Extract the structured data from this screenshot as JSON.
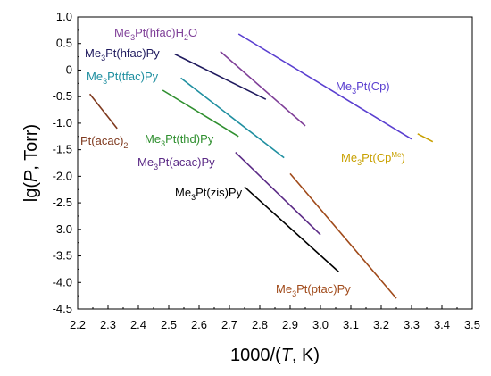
{
  "chart_data": {
    "type": "line",
    "title": "",
    "xlabel": {
      "pre": "1000/(",
      "var": "T",
      "post": ", K)"
    },
    "ylabel": {
      "pre": "lg(",
      "var": "P",
      "post": ", Torr)"
    },
    "xlim": [
      2.2,
      3.5
    ],
    "ylim": [
      -4.5,
      1.0
    ],
    "x_ticks": [
      "2.2",
      "2.3",
      "2.4",
      "2.5",
      "2.6",
      "2.7",
      "2.8",
      "2.9",
      "3.0",
      "3.1",
      "3.2",
      "3.3",
      "3.4",
      "3.5"
    ],
    "y_ticks": [
      "1.0",
      "0.5",
      "0",
      "-0.5",
      "-1.0",
      "-1.5",
      "-2.0",
      "-2.5",
      "-3.0",
      "-3.5",
      "-4.0",
      "-4.5"
    ],
    "grid": false,
    "series": [
      {
        "color": "#7f3f98",
        "label": {
          "parts": [
            {
              "t": "Me"
            },
            {
              "t": "3",
              "s": "sub"
            },
            {
              "t": "Pt(hfac)H"
            },
            {
              "t": "2",
              "s": "sub"
            },
            {
              "t": "O"
            }
          ]
        },
        "x": [
          2.67,
          2.95
        ],
        "y": [
          0.35,
          -1.05
        ]
      },
      {
        "color": "#1f1a5e",
        "label": {
          "parts": [
            {
              "t": "Me"
            },
            {
              "t": "3",
              "s": "sub"
            },
            {
              "t": "Pt(hfac)Py"
            }
          ]
        },
        "x": [
          2.52,
          2.82
        ],
        "y": [
          0.3,
          -0.55
        ]
      },
      {
        "color": "#1f8fa0",
        "label": {
          "parts": [
            {
              "t": "Me"
            },
            {
              "t": "3",
              "s": "sub"
            },
            {
              "t": "Pt(tfac)Py"
            }
          ]
        },
        "x": [
          2.54,
          2.88
        ],
        "y": [
          -0.15,
          -1.65
        ]
      },
      {
        "color": "#7f3a1f",
        "label": {
          "parts": [
            {
              "t": "Pt(acac)"
            },
            {
              "t": "2",
              "s": "sub"
            }
          ]
        },
        "x": [
          2.24,
          2.33
        ],
        "y": [
          -0.45,
          -1.1
        ]
      },
      {
        "color": "#2f8f2f",
        "label": {
          "parts": [
            {
              "t": "Me"
            },
            {
              "t": "3",
              "s": "sub"
            },
            {
              "t": "Pt(thd)Py"
            }
          ]
        },
        "x": [
          2.48,
          2.73
        ],
        "y": [
          -0.38,
          -1.25
        ]
      },
      {
        "color": "#5b2a86",
        "label": {
          "parts": [
            {
              "t": "Me"
            },
            {
              "t": "3",
              "s": "sub"
            },
            {
              "t": "Pt(acac)Py"
            }
          ]
        },
        "x": [
          2.72,
          3.0
        ],
        "y": [
          -1.55,
          -3.1
        ]
      },
      {
        "color": "#000000",
        "label": {
          "parts": [
            {
              "t": "Me"
            },
            {
              "t": "3",
              "s": "sub"
            },
            {
              "t": "Pt(zis)Py"
            }
          ]
        },
        "x": [
          2.75,
          3.06
        ],
        "y": [
          -2.2,
          -3.8
        ]
      },
      {
        "color": "#5a3fd0",
        "label": {
          "parts": [
            {
              "t": "Me"
            },
            {
              "t": "3",
              "s": "sub"
            },
            {
              "t": "Pt(Cp)"
            }
          ]
        },
        "x": [
          2.73,
          3.3
        ],
        "y": [
          0.68,
          -1.3
        ]
      },
      {
        "color": "#c8a000",
        "label": {
          "parts": [
            {
              "t": "Me"
            },
            {
              "t": "3",
              "s": "sub"
            },
            {
              "t": "Pt(Cp"
            },
            {
              "t": "Me",
              "s": "sup"
            },
            {
              "t": ")"
            }
          ]
        },
        "x": [
          3.32,
          3.37
        ],
        "y": [
          -1.2,
          -1.35
        ]
      },
      {
        "color": "#a04a1a",
        "label": {
          "parts": [
            {
              "t": "Me"
            },
            {
              "t": "3",
              "s": "sub"
            },
            {
              "t": "Pt(ptac)Py"
            }
          ]
        },
        "x": [
          2.9,
          3.25
        ],
        "y": [
          -1.95,
          -4.3
        ]
      }
    ],
    "colors": {
      "axis": "#000000"
    }
  }
}
